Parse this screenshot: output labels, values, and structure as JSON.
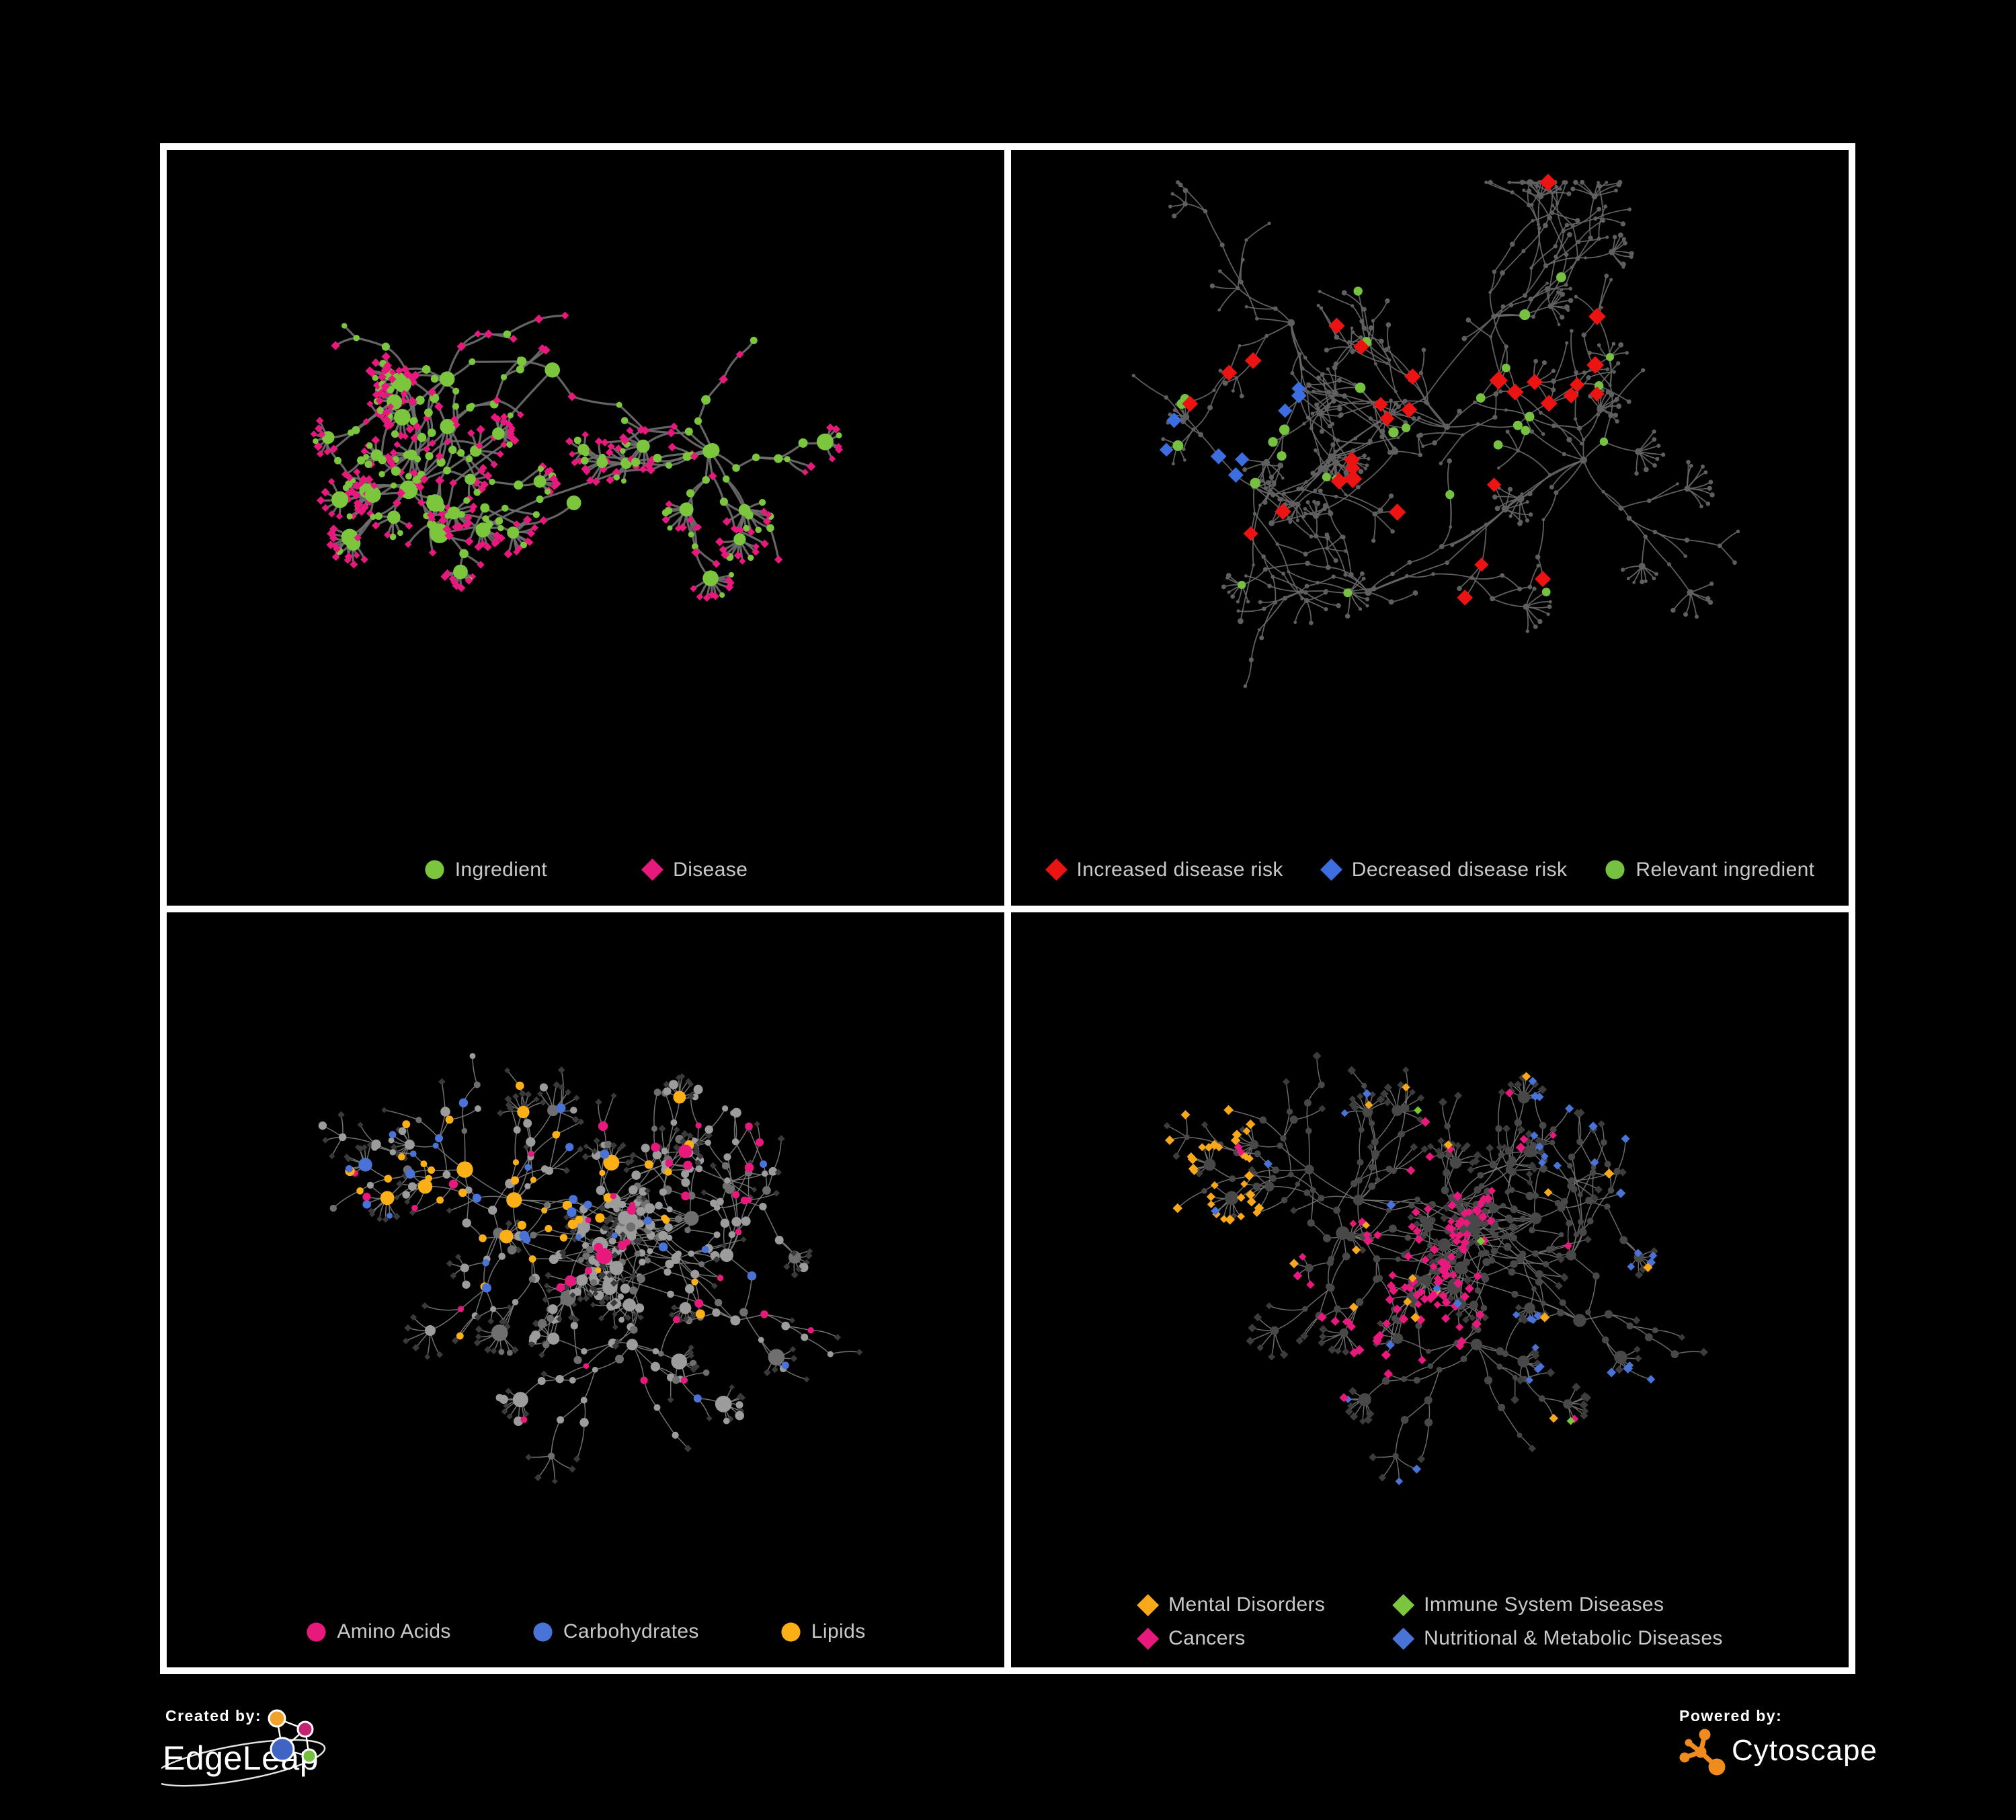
{
  "page": {
    "background": "#000000",
    "frame_color": "#FFFFFF",
    "legend_text_color": "#C9C9C9"
  },
  "panels": [
    {
      "name": "ingredient-disease-network",
      "legend": [
        {
          "label": "Ingredient",
          "shape": "circle",
          "color": "#7CC63D"
        },
        {
          "label": "Disease",
          "shape": "diamond",
          "color": "#E8197D"
        }
      ],
      "edge_color": "#6F6F6F",
      "node_colors": {
        "ingredient_green": "#7CC63D",
        "disease_pink": "#E8197D"
      }
    },
    {
      "name": "disease-risk-network",
      "legend": [
        {
          "label": "Increased disease risk",
          "shape": "diamond",
          "color": "#EC1313"
        },
        {
          "label": "Decreased disease risk",
          "shape": "diamond",
          "color": "#3D6EE0"
        },
        {
          "label": "Relevant ingredient",
          "shape": "circle",
          "color": "#76C13F"
        }
      ],
      "edge_color": "#696969",
      "node_colors": {
        "background_node": "#5F5F5F",
        "increased_risk_red": "#EC1313",
        "decreased_risk_blue": "#3D6EE0",
        "uncertain_gray": "#9A9A9A",
        "relevant_ingredient_green": "#76C13F"
      }
    },
    {
      "name": "ingredient-classes-network",
      "legend": [
        {
          "label": "Amino Acids",
          "shape": "circle",
          "color": "#E8197D"
        },
        {
          "label": "Carbohydrates",
          "shape": "circle",
          "color": "#4A73D8"
        },
        {
          "label": "Lipids",
          "shape": "circle",
          "color": "#FBB018"
        }
      ],
      "edge_color": "#7D7D7D",
      "node_colors": {
        "amino_acids_pink": "#E8197D",
        "carbohydrates_blue": "#4A73D8",
        "lipids_orange": "#FBB018",
        "other_ingredient_gray": "#9C9C9C",
        "other_ingredient_dim": "#6F6F6F",
        "disease_dark": "#3A3A3A"
      }
    },
    {
      "name": "disease-classes-network",
      "legend": [
        {
          "label": "Mental Disorders",
          "shape": "diamond",
          "color": "#F9A81A"
        },
        {
          "label": "Immune System Diseases",
          "shape": "diamond",
          "color": "#7CC63D"
        },
        {
          "label": "Cancers",
          "shape": "diamond",
          "color": "#E8197D"
        },
        {
          "label": "Nutritional & Metabolic Diseases",
          "shape": "diamond",
          "color": "#4A73D8"
        }
      ],
      "edge_color": "#757575",
      "node_colors": {
        "mental_orange": "#F9A81A",
        "immune_green": "#7CC63D",
        "cancer_pink": "#E8197D",
        "metabolic_blue": "#4A73D8",
        "other_disease_dark": "#3C3C3C",
        "ingredient_dark": "#484848"
      }
    }
  ],
  "footer": {
    "created_by_label": "Created by:",
    "edgeleap_brand": "EdgeLeap",
    "edgeleap_logo_colors": {
      "orange": "#F0A32A",
      "pink": "#C42372",
      "blue": "#4064C4",
      "green": "#76BE3F"
    },
    "powered_by_label": "Powered by:",
    "cytoscape_brand": "Cytoscape",
    "cytoscape_logo_color": "#F08C1D"
  }
}
